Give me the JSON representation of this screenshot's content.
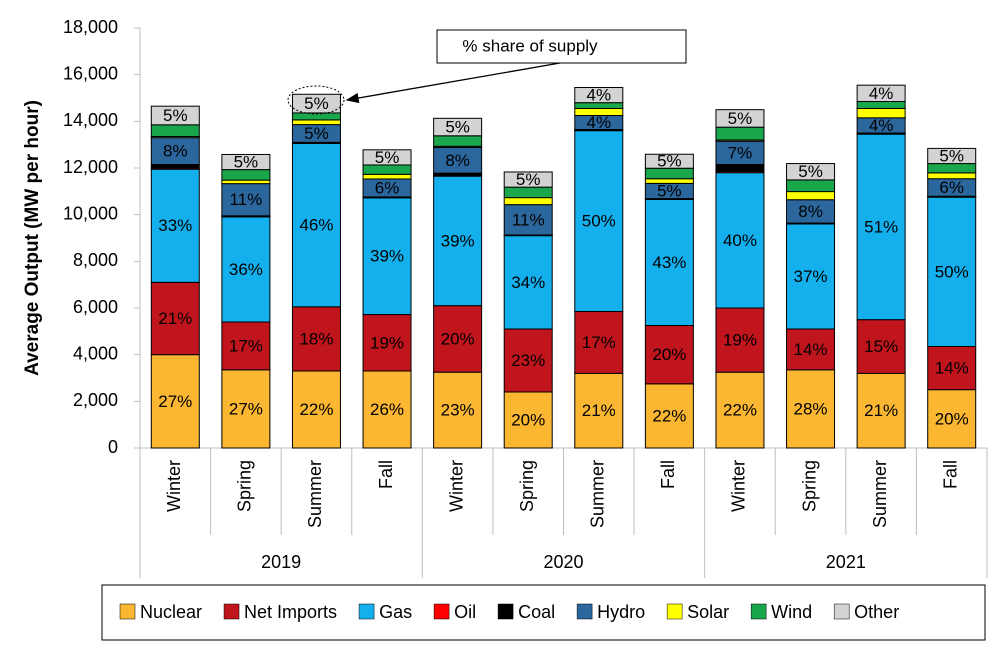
{
  "chart_data": {
    "type": "stacked_bar",
    "y_label": "Average Output (MW per hour)",
    "categories": [
      "Winter",
      "Spring",
      "Summer",
      "Fall",
      "Winter",
      "Spring",
      "Summer",
      "Fall",
      "Winter",
      "Spring",
      "Summer",
      "Fall"
    ],
    "groups": [
      "2019",
      "2020",
      "2021"
    ],
    "annotation": "% share of supply",
    "ylim": [
      0,
      18000
    ],
    "yticks": [
      0,
      {
        "value": 2000,
        "label": "2,000"
      },
      {
        "value": 4000,
        "label": "4,000"
      },
      {
        "value": 6000,
        "label": "6,000"
      },
      {
        "value": 8000,
        "label": "8,000"
      },
      {
        "value": 10000,
        "label": "10,000"
      },
      {
        "value": 12000,
        "label": "12,000"
      },
      {
        "value": 14000,
        "label": "14,000"
      },
      {
        "value": 16000,
        "label": "16,000"
      },
      {
        "value": 18000,
        "label": "18,000"
      }
    ],
    "series": [
      {
        "name": "Nuclear",
        "color": "#fbb731",
        "values": [
          4000,
          3350,
          3300,
          3300,
          3250,
          2400,
          3200,
          2750,
          3250,
          3350,
          3200,
          2500
        ],
        "value_labels": [
          "27%",
          "27%",
          "22%",
          "26%",
          "23%",
          "20%",
          "21%",
          "22%",
          "22%",
          "28%",
          "21%",
          "20%"
        ]
      },
      {
        "name": "Net Imports",
        "color": "#c0151c",
        "values": [
          3100,
          2050,
          2750,
          2420,
          2850,
          2700,
          2650,
          2500,
          2750,
          1750,
          2300,
          1850
        ],
        "value_labels": [
          "21%",
          "17%",
          "18%",
          "19%",
          "20%",
          "23%",
          "17%",
          "20%",
          "19%",
          "14%",
          "15%",
          "14%"
        ]
      },
      {
        "name": "Gas",
        "color": "#14b0ee",
        "values": [
          4850,
          4500,
          7000,
          5000,
          5550,
          4000,
          7750,
          5400,
          5800,
          4500,
          7950,
          6400
        ],
        "value_labels": [
          "33%",
          "36%",
          "46%",
          "39%",
          "39%",
          "34%",
          "50%",
          "43%",
          "40%",
          "37%",
          "51%",
          "50%"
        ]
      },
      {
        "name": "Oil",
        "color": "#ff0000",
        "values": [
          50,
          30,
          30,
          20,
          30,
          20,
          30,
          20,
          50,
          20,
          30,
          20
        ]
      },
      {
        "name": "Coal",
        "color": "#000000",
        "values": [
          150,
          20,
          20,
          20,
          100,
          10,
          20,
          20,
          300,
          20,
          20,
          20
        ]
      },
      {
        "name": "Hydro",
        "color": "#2b679d",
        "values": [
          1150,
          1380,
          760,
          770,
          1100,
          1300,
          600,
          650,
          1000,
          1000,
          650,
          750
        ],
        "value_labels": [
          "8%",
          "11%",
          "5%",
          "6%",
          "8%",
          "11%",
          "4%",
          "5%",
          "7%",
          "8%",
          "4%",
          "6%"
        ]
      },
      {
        "name": "Solar",
        "color": "#ffff00",
        "values": [
          50,
          150,
          200,
          200,
          50,
          300,
          300,
          200,
          50,
          350,
          400,
          250
        ]
      },
      {
        "name": "Wind",
        "color": "#1aa64a",
        "values": [
          500,
          450,
          300,
          400,
          450,
          450,
          250,
          450,
          550,
          500,
          300,
          400
        ]
      },
      {
        "name": "Other",
        "color": "#d3d3d3",
        "values": [
          800,
          650,
          800,
          650,
          750,
          650,
          650,
          600,
          750,
          700,
          700,
          650
        ],
        "value_labels": [
          "5%",
          "5%",
          "5%",
          "5%",
          "5%",
          "5%",
          "4%",
          "5%",
          "5%",
          "5%",
          "4%",
          "5%"
        ]
      }
    ],
    "legend": "bottom"
  }
}
